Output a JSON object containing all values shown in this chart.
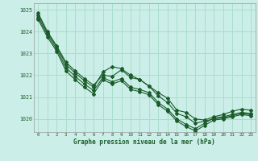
{
  "xlabel": "Graphe pression niveau de la mer (hPa)",
  "bg_color": "#cceee8",
  "grid_color": "#aaddcc",
  "line_color": "#1a5c2a",
  "xlim": [
    -0.5,
    23.5
  ],
  "ylim": [
    1019.4,
    1025.3
  ],
  "yticks": [
    1020,
    1021,
    1022,
    1023,
    1024,
    1025
  ],
  "xticks": [
    0,
    1,
    2,
    3,
    4,
    5,
    6,
    7,
    8,
    9,
    10,
    11,
    12,
    13,
    14,
    15,
    16,
    17,
    18,
    19,
    20,
    21,
    22,
    23
  ],
  "series": [
    [
      1024.85,
      1024.0,
      1023.35,
      1022.6,
      1022.2,
      1021.85,
      1021.55,
      1022.0,
      1021.95,
      1022.25,
      1021.9,
      1021.8,
      1021.5,
      1021.2,
      1020.95,
      1020.4,
      1020.3,
      1020.0,
      1019.95,
      1020.1,
      1020.2,
      1020.35,
      1020.45,
      1020.4
    ],
    [
      1024.75,
      1023.95,
      1023.3,
      1022.5,
      1022.1,
      1021.75,
      1021.45,
      1022.15,
      1022.4,
      1022.3,
      1022.0,
      1021.8,
      1021.5,
      1021.05,
      1020.75,
      1020.25,
      1020.1,
      1019.8,
      1019.9,
      1020.0,
      1020.05,
      1020.15,
      1020.25,
      1020.2
    ],
    [
      1024.65,
      1023.85,
      1023.2,
      1022.35,
      1021.95,
      1021.6,
      1021.3,
      1021.9,
      1021.7,
      1021.85,
      1021.45,
      1021.35,
      1021.2,
      1020.75,
      1020.45,
      1020.0,
      1019.75,
      1019.55,
      1019.8,
      1020.05,
      1020.1,
      1020.2,
      1020.3,
      1020.25
    ],
    [
      1024.55,
      1023.75,
      1023.1,
      1022.2,
      1021.8,
      1021.45,
      1021.15,
      1021.8,
      1021.6,
      1021.75,
      1021.35,
      1021.25,
      1021.1,
      1020.65,
      1020.35,
      1019.9,
      1019.65,
      1019.45,
      1019.7,
      1019.95,
      1020.0,
      1020.1,
      1020.2,
      1020.15
    ]
  ]
}
